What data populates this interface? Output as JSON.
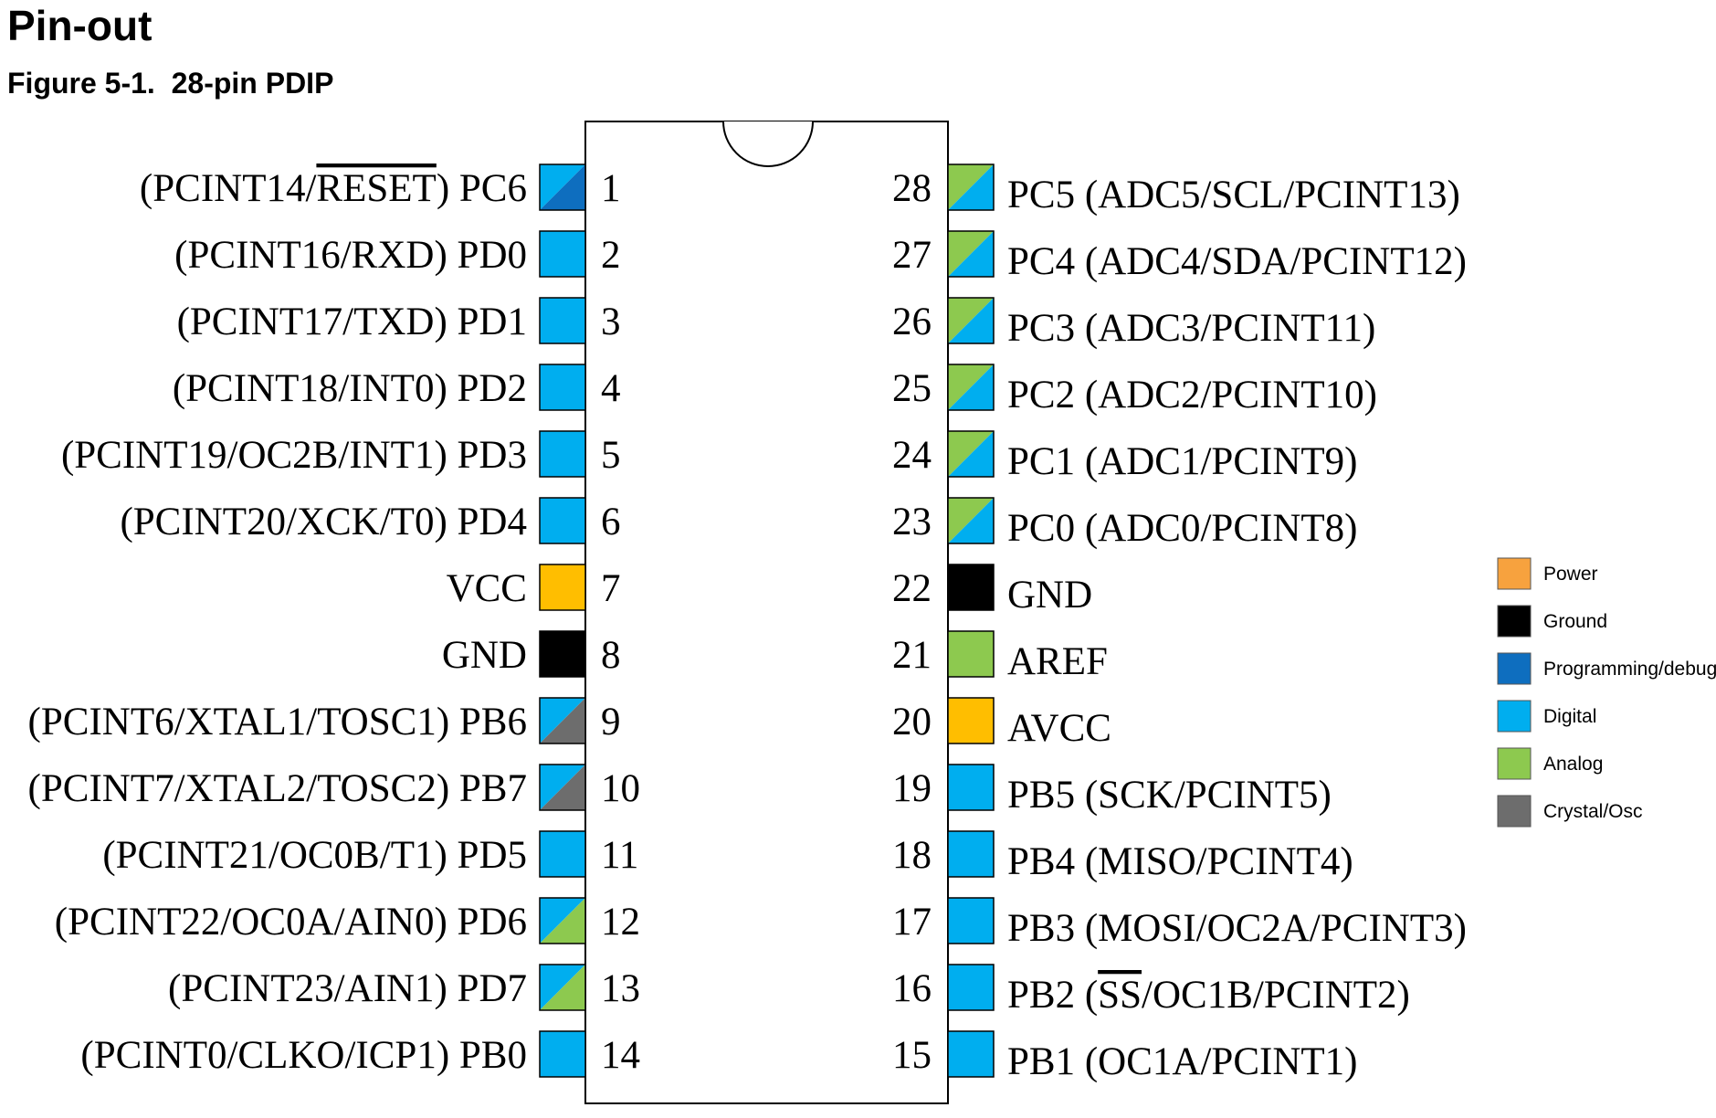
{
  "heading": "Pin-out",
  "figure_caption": "Figure 5-1.  28-pin PDIP",
  "colors": {
    "power": "#FFBE00",
    "ground": "#000000",
    "programming": "#0E6EBF",
    "digital": "#00AEEF",
    "analog": "#8DC94F",
    "crystal": "#6D6D6D",
    "legend_power": "#F7A23E"
  },
  "legend": [
    {
      "label": "Power",
      "color": "legend_power"
    },
    {
      "label": "Ground",
      "color": "ground"
    },
    {
      "label": "Programming/debug",
      "color": "programming"
    },
    {
      "label": "Digital",
      "color": "digital"
    },
    {
      "label": "Analog",
      "color": "analog"
    },
    {
      "label": "Crystal/Osc",
      "color": "crystal"
    }
  ],
  "pins": [
    {
      "num": "1",
      "side": "left",
      "prefix": "(PCINT14/",
      "overbar": "RESET",
      "suffix": ") PC6",
      "types": [
        "digital",
        "programming"
      ]
    },
    {
      "num": "2",
      "side": "left",
      "label": "(PCINT16/RXD) PD0",
      "types": [
        "digital"
      ]
    },
    {
      "num": "3",
      "side": "left",
      "label": "(PCINT17/TXD) PD1",
      "types": [
        "digital"
      ]
    },
    {
      "num": "4",
      "side": "left",
      "label": "(PCINT18/INT0) PD2",
      "types": [
        "digital"
      ]
    },
    {
      "num": "5",
      "side": "left",
      "label": "(PCINT19/OC2B/INT1) PD3",
      "types": [
        "digital"
      ]
    },
    {
      "num": "6",
      "side": "left",
      "label": "(PCINT20/XCK/T0) PD4",
      "types": [
        "digital"
      ]
    },
    {
      "num": "7",
      "side": "left",
      "label": "VCC",
      "types": [
        "power"
      ]
    },
    {
      "num": "8",
      "side": "left",
      "label": "GND",
      "types": [
        "ground"
      ]
    },
    {
      "num": "9",
      "side": "left",
      "label": "(PCINT6/XTAL1/TOSC1) PB6",
      "types": [
        "digital",
        "crystal"
      ]
    },
    {
      "num": "10",
      "side": "left",
      "label": "(PCINT7/XTAL2/TOSC2) PB7",
      "types": [
        "digital",
        "crystal"
      ]
    },
    {
      "num": "11",
      "side": "left",
      "label": "(PCINT21/OC0B/T1) PD5",
      "types": [
        "digital"
      ]
    },
    {
      "num": "12",
      "side": "left",
      "label": "(PCINT22/OC0A/AIN0) PD6",
      "types": [
        "digital",
        "analog"
      ]
    },
    {
      "num": "13",
      "side": "left",
      "label": "(PCINT23/AIN1) PD7",
      "types": [
        "digital",
        "analog"
      ]
    },
    {
      "num": "14",
      "side": "left",
      "label": "(PCINT0/CLKO/ICP1) PB0",
      "types": [
        "digital"
      ]
    },
    {
      "num": "28",
      "side": "right",
      "label": "PC5 (ADC5/SCL/PCINT13)",
      "types": [
        "analog",
        "digital"
      ]
    },
    {
      "num": "27",
      "side": "right",
      "label": "PC4 (ADC4/SDA/PCINT12)",
      "types": [
        "analog",
        "digital"
      ]
    },
    {
      "num": "26",
      "side": "right",
      "label": "PC3 (ADC3/PCINT11)",
      "types": [
        "analog",
        "digital"
      ]
    },
    {
      "num": "25",
      "side": "right",
      "label": "PC2 (ADC2/PCINT10)",
      "types": [
        "analog",
        "digital"
      ]
    },
    {
      "num": "24",
      "side": "right",
      "label": "PC1 (ADC1/PCINT9)",
      "types": [
        "analog",
        "digital"
      ]
    },
    {
      "num": "23",
      "side": "right",
      "label": "PC0 (ADC0/PCINT8)",
      "types": [
        "analog",
        "digital"
      ]
    },
    {
      "num": "22",
      "side": "right",
      "label": "GND",
      "types": [
        "ground"
      ]
    },
    {
      "num": "21",
      "side": "right",
      "label": "AREF",
      "types": [
        "analog"
      ]
    },
    {
      "num": "20",
      "side": "right",
      "label": "AVCC",
      "types": [
        "power"
      ]
    },
    {
      "num": "19",
      "side": "right",
      "label": "PB5 (SCK/PCINT5)",
      "types": [
        "digital"
      ]
    },
    {
      "num": "18",
      "side": "right",
      "label": "PB4 (MISO/PCINT4)",
      "types": [
        "digital"
      ]
    },
    {
      "num": "17",
      "side": "right",
      "label": "PB3 (MOSI/OC2A/PCINT3)",
      "types": [
        "digital"
      ]
    },
    {
      "num": "16",
      "side": "right",
      "prefix": "PB2 (",
      "overbar": "SS",
      "suffix": "/OC1B/PCINT2)",
      "types": [
        "digital"
      ]
    },
    {
      "num": "15",
      "side": "right",
      "label": "PB1 (OC1A/PCINT1)",
      "types": [
        "digital"
      ]
    }
  ]
}
